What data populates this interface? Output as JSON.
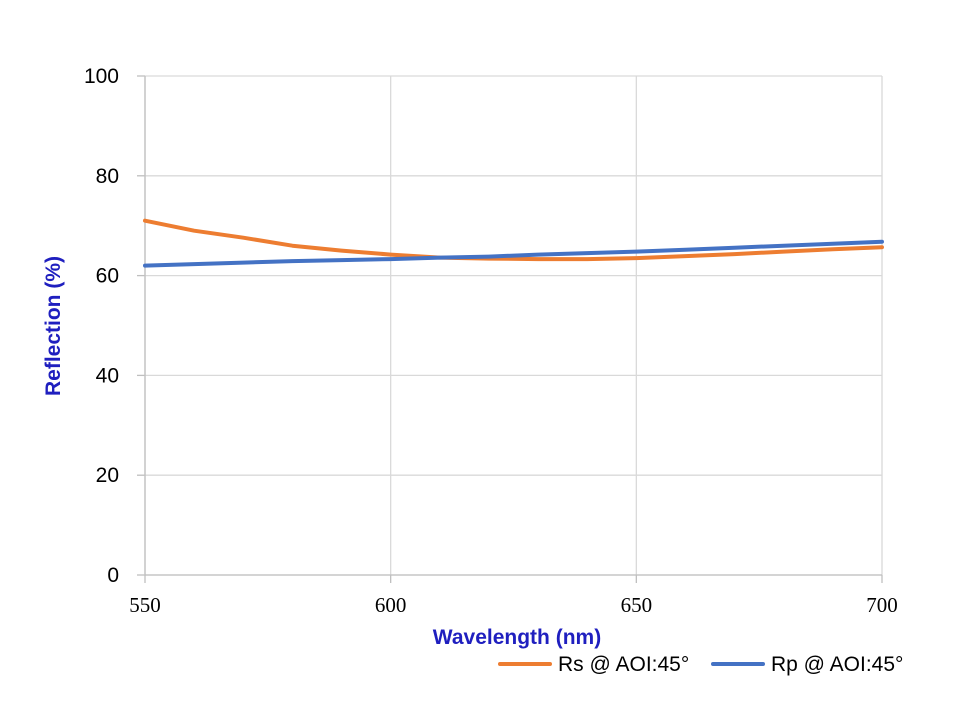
{
  "chart_data": {
    "type": "line",
    "xlabel": "Wavelength (nm)",
    "ylabel": "Reflection (%)",
    "xlim": [
      550,
      700
    ],
    "ylim": [
      0,
      100
    ],
    "x_ticks": [
      "550",
      "600",
      "650",
      "700"
    ],
    "y_ticks": [
      "0",
      "20",
      "40",
      "60",
      "80",
      "100"
    ],
    "x_tick_values": [
      550,
      600,
      650,
      700
    ],
    "y_tick_values": [
      0,
      20,
      40,
      60,
      80,
      100
    ],
    "grid": true,
    "legend_position": "bottom-right",
    "axis_title_color": "#1f1fbf",
    "series": [
      {
        "name": "Rs @ AOI:45°",
        "color": "#ed7d31",
        "x": [
          550,
          560,
          570,
          580,
          590,
          600,
          610,
          620,
          630,
          640,
          650,
          660,
          670,
          680,
          690,
          700
        ],
        "y": [
          71.0,
          69.0,
          67.6,
          66.0,
          65.0,
          64.2,
          63.6,
          63.4,
          63.3,
          63.3,
          63.5,
          63.9,
          64.3,
          64.8,
          65.3,
          65.7
        ]
      },
      {
        "name": "Rp @ AOI:45°",
        "color": "#4472c4",
        "x": [
          550,
          560,
          570,
          580,
          590,
          600,
          610,
          620,
          630,
          640,
          650,
          660,
          670,
          680,
          690,
          700
        ],
        "y": [
          62.0,
          62.3,
          62.6,
          62.9,
          63.1,
          63.3,
          63.6,
          63.8,
          64.2,
          64.5,
          64.8,
          65.2,
          65.6,
          66.0,
          66.4,
          66.8
        ]
      }
    ]
  }
}
